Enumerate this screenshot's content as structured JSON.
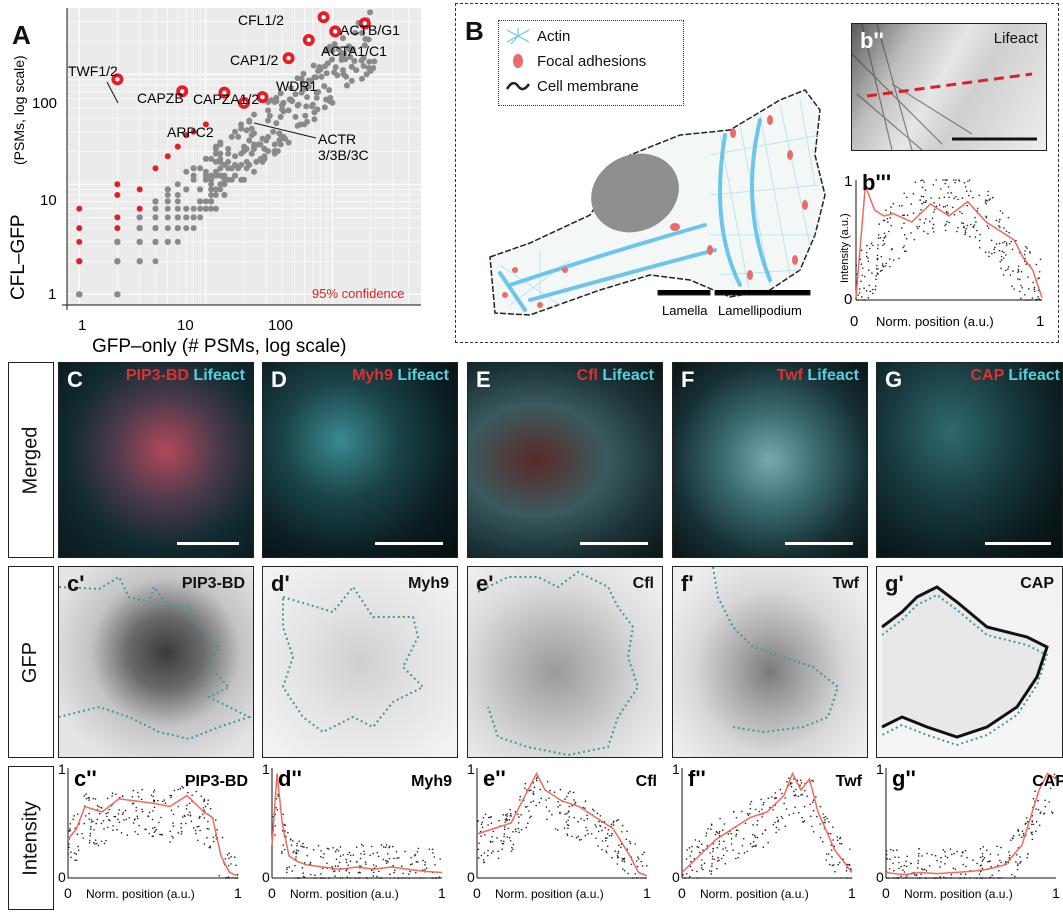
{
  "panelA": {
    "letter": "A",
    "ylabel": "CFL–GFP",
    "ylabel_sub": "(PSMs, log scale)",
    "xlabel": "GFP–only (# PSMs, log scale)",
    "confidence_label": "95% confidence",
    "yticks": [
      "1",
      "10",
      "100"
    ],
    "xticks": [
      "1",
      "10",
      "100"
    ],
    "labels": {
      "twf": "TWF1/2",
      "capzb": "CAPZB",
      "capza": "CAPZA1/2",
      "arpc2": "ARPC2",
      "actr": "ACTR",
      "actr2": "3/3B/3C",
      "cfl": "CFL1/2",
      "actb": "ACTB/G1",
      "cap": "CAP1/2",
      "acta": "ACTA1/C1",
      "wdr": "WDR1"
    }
  },
  "panelB": {
    "letter": "B",
    "legend": [
      "Actin",
      "Focal adhesions",
      "Cell membrane"
    ],
    "lamella": "Lamella",
    "lamellipodium": "Lamellipodium",
    "b2_letter": "b''",
    "b2_title": "Lifeact",
    "b3_letter": "b'''",
    "b3_ylabel": "Intensity (a.u.)",
    "b3_xlabel": "Norm. position (a.u.)",
    "b3_y1": "1",
    "b3_y0": "0",
    "b3_x0": "0",
    "b3_x1": "1"
  },
  "rows": {
    "merged": "Merged",
    "gfp": "GFP",
    "intensity": "Intensity"
  },
  "merged": [
    {
      "letter": "C",
      "red": "PIP3-BD",
      "cyan": " Lifeact"
    },
    {
      "letter": "D",
      "red": "Myh9",
      "cyan": " Lifeact"
    },
    {
      "letter": "E",
      "red": "Cfl",
      "cyan": " Lifeact"
    },
    {
      "letter": "F",
      "red": "Twf",
      "cyan": " Lifeact"
    },
    {
      "letter": "G",
      "red": "CAP",
      "cyan": " Lifeact"
    }
  ],
  "gfp": [
    {
      "letter": "c'",
      "title": "PIP3-BD"
    },
    {
      "letter": "d'",
      "title": "Myh9"
    },
    {
      "letter": "e'",
      "title": "Cfl"
    },
    {
      "letter": "f'",
      "title": "Twf"
    },
    {
      "letter": "g'",
      "title": "CAP"
    }
  ],
  "intensity": [
    {
      "letter": "c''",
      "title": "PIP3-BD"
    },
    {
      "letter": "d''",
      "title": "Myh9"
    },
    {
      "letter": "e''",
      "title": "Cfl"
    },
    {
      "letter": "f''",
      "title": "Twf"
    },
    {
      "letter": "g''",
      "title": "CAP"
    }
  ],
  "intensity_axis": {
    "y1": "1",
    "y0": "0",
    "x0": "0",
    "x1": "1",
    "xlabel": "Norm. position (a.u.)"
  },
  "chart_data": [
    {
      "type": "scatter",
      "xlabel": "GFP–only (# PSMs, log scale)",
      "ylabel": "CFL–GFP (PSMs, log scale)",
      "log_scale": true,
      "xlim": [
        0.8,
        500
      ],
      "ylim": [
        0.8,
        400
      ],
      "series": [
        {
          "name": "labeled hits",
          "points": [
            {
              "label": "TWF1/2",
              "x": 2,
              "y": 90
            },
            {
              "label": "CAPZB",
              "x": 6.5,
              "y": 70
            },
            {
              "label": "CAPZA1/2",
              "x": 14,
              "y": 68
            },
            {
              "label": "ARPC2",
              "x": 20,
              "y": 55
            },
            {
              "label": "ACTR 3/3B/3C",
              "x": 28,
              "y": 62
            },
            {
              "label": "WDR1",
              "x": 45,
              "y": 140
            },
            {
              "label": "CAP1/2",
              "x": 65,
              "y": 205
            },
            {
              "label": "ACTA1/C1",
              "x": 105,
              "y": 245
            },
            {
              "label": "CFL1/2",
              "x": 85,
              "y": 330
            },
            {
              "label": "ACTB/G1",
              "x": 180,
              "y": 290
            }
          ]
        }
      ]
    },
    {
      "type": "line",
      "title": "b'''",
      "xlabel": "Norm. position (a.u.)",
      "ylabel": "Intensity (a.u.)",
      "xlim": [
        0,
        1
      ],
      "ylim": [
        0,
        1
      ],
      "x": [
        0,
        0.05,
        0.1,
        0.15,
        0.2,
        0.3,
        0.4,
        0.5,
        0.6,
        0.7,
        0.8,
        0.85,
        0.9,
        0.95,
        1
      ],
      "values": [
        0.02,
        0.95,
        0.75,
        0.7,
        0.72,
        0.65,
        0.8,
        0.7,
        0.82,
        0.65,
        0.55,
        0.5,
        0.35,
        0.25,
        0.02
      ]
    },
    {
      "type": "line",
      "title": "PIP3-BD",
      "xlabel": "Norm. position (a.u.)",
      "xlim": [
        0,
        1
      ],
      "ylim": [
        0,
        1
      ],
      "x": [
        0,
        0.05,
        0.1,
        0.2,
        0.3,
        0.4,
        0.5,
        0.6,
        0.7,
        0.8,
        0.85,
        0.9,
        0.95,
        1
      ],
      "values": [
        0.35,
        0.45,
        0.65,
        0.6,
        0.72,
        0.7,
        0.68,
        0.65,
        0.75,
        0.6,
        0.55,
        0.2,
        0.05,
        0.02
      ]
    },
    {
      "type": "line",
      "title": "Myh9",
      "xlabel": "Norm. position (a.u.)",
      "xlim": [
        0,
        1
      ],
      "ylim": [
        0,
        1
      ],
      "x": [
        0,
        0.03,
        0.06,
        0.1,
        0.15,
        0.2,
        0.3,
        0.4,
        0.5,
        0.6,
        0.7,
        0.8,
        0.9,
        1
      ],
      "values": [
        0.3,
        0.95,
        0.5,
        0.2,
        0.15,
        0.12,
        0.1,
        0.08,
        0.1,
        0.08,
        0.1,
        0.08,
        0.06,
        0.05
      ]
    },
    {
      "type": "line",
      "title": "Cfl",
      "xlabel": "Norm. position (a.u.)",
      "xlim": [
        0,
        1
      ],
      "ylim": [
        0,
        1
      ],
      "x": [
        0,
        0.1,
        0.2,
        0.3,
        0.35,
        0.4,
        0.5,
        0.6,
        0.7,
        0.8,
        0.9,
        0.95,
        1
      ],
      "values": [
        0.4,
        0.45,
        0.5,
        0.8,
        0.95,
        0.8,
        0.7,
        0.65,
        0.55,
        0.45,
        0.2,
        0.05,
        0.02
      ]
    },
    {
      "type": "line",
      "title": "Twf",
      "xlabel": "Norm. position (a.u.)",
      "xlim": [
        0,
        1
      ],
      "ylim": [
        0,
        1
      ],
      "x": [
        0,
        0.1,
        0.2,
        0.3,
        0.4,
        0.5,
        0.6,
        0.65,
        0.7,
        0.75,
        0.8,
        0.9,
        1
      ],
      "values": [
        0.05,
        0.2,
        0.35,
        0.45,
        0.55,
        0.6,
        0.75,
        0.95,
        0.8,
        0.9,
        0.6,
        0.25,
        0.05
      ]
    },
    {
      "type": "line",
      "title": "CAP",
      "xlabel": "Norm. position (a.u.)",
      "xlim": [
        0,
        1
      ],
      "ylim": [
        0,
        1
      ],
      "x": [
        0,
        0.1,
        0.2,
        0.3,
        0.4,
        0.5,
        0.6,
        0.7,
        0.8,
        0.85,
        0.9,
        0.95,
        1
      ],
      "values": [
        0.05,
        0.03,
        0.05,
        0.04,
        0.05,
        0.06,
        0.08,
        0.12,
        0.3,
        0.55,
        0.8,
        0.95,
        0.9
      ]
    }
  ]
}
